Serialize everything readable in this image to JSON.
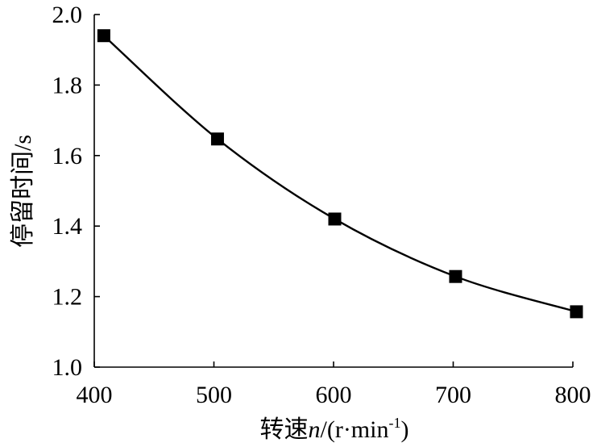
{
  "chart_data": {
    "type": "line",
    "title": "",
    "xlabel": "转速n/(r·min-1)",
    "ylabel": "停留时间/s",
    "xlim": [
      400,
      800
    ],
    "ylim": [
      1.0,
      2.0
    ],
    "x_ticks": [
      "400",
      "500",
      "600",
      "700",
      "800"
    ],
    "y_ticks": [
      "1.0",
      "1.2",
      "1.4",
      "1.6",
      "1.8",
      "2.0"
    ],
    "grid": false,
    "legend": "none",
    "series": [
      {
        "x": [
          408,
          503,
          601,
          702,
          803
        ],
        "y": [
          1.94,
          1.647,
          1.42,
          1.257,
          1.157
        ],
        "marker": "square",
        "color": "#000000"
      }
    ]
  },
  "axis_titles": {
    "x_prefix": "转速",
    "x_variable": "n",
    "x_unit_open": "/(r·min",
    "x_unit_exponent": "-1",
    "x_unit_close": ")",
    "y": "停留时间/s"
  }
}
